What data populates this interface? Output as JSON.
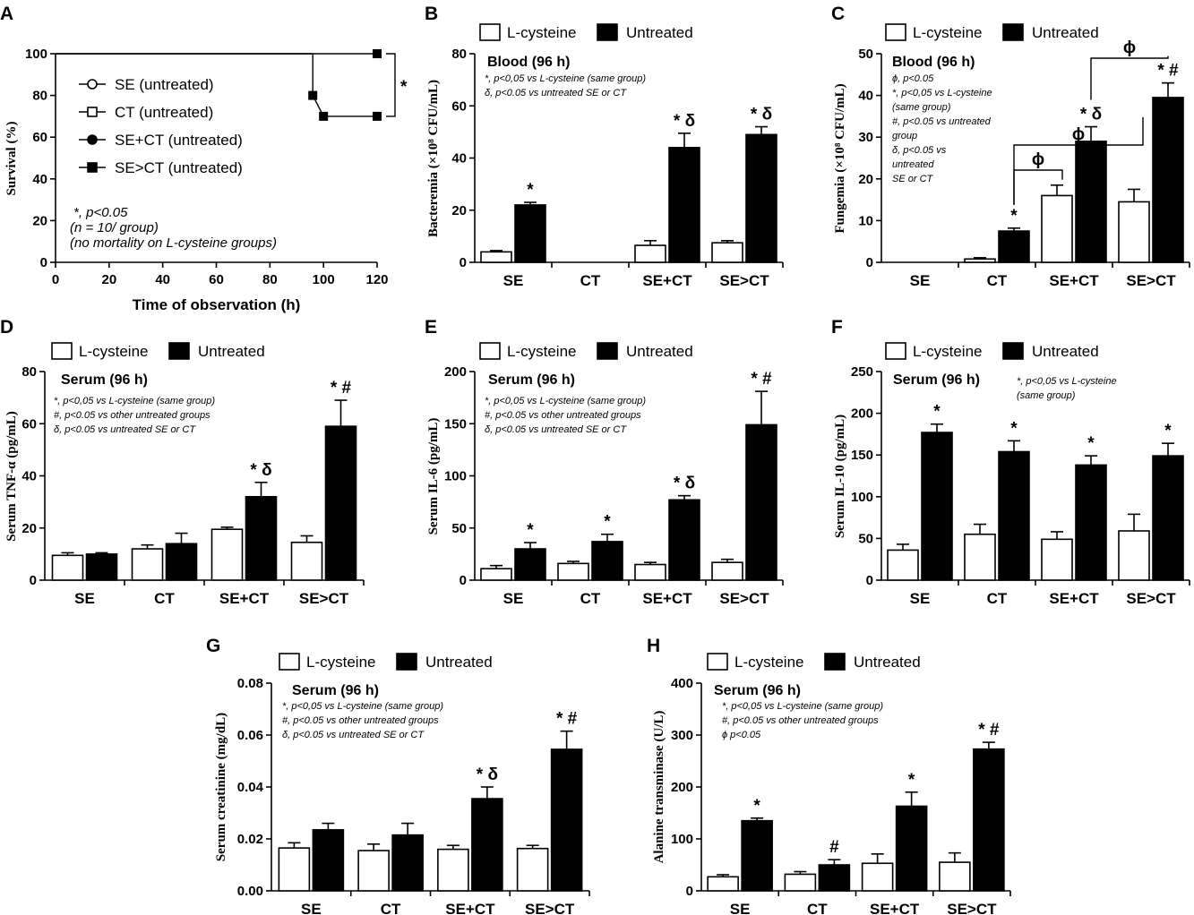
{
  "legend": {
    "lcys": "L-cysteine",
    "untreated": "Untreated"
  },
  "chart_data": [
    {
      "id": "A",
      "panel_label": "A",
      "type": "line",
      "xlabel": "Time of observation (h)",
      "ylabel": "Survival (%)",
      "xlim": [
        0,
        120
      ],
      "ylim": [
        0,
        100
      ],
      "xticks": [
        0,
        20,
        40,
        60,
        80,
        100,
        120
      ],
      "yticks": [
        0,
        20,
        40,
        60,
        80,
        100
      ],
      "series": [
        {
          "name": "SE (untreated)",
          "marker": "circle-open",
          "x": [
            0,
            120
          ],
          "y": [
            100,
            100
          ]
        },
        {
          "name": "CT (untreated)",
          "marker": "square-open",
          "x": [
            0,
            120
          ],
          "y": [
            100,
            100
          ]
        },
        {
          "name": "SE+CT (untreated)",
          "marker": "circle-filled",
          "x": [
            0,
            120
          ],
          "y": [
            100,
            100
          ]
        },
        {
          "name": "SE>CT (untreated)",
          "marker": "square-filled",
          "x": [
            0,
            96,
            96,
            100,
            120
          ],
          "y": [
            100,
            100,
            80,
            70,
            70
          ]
        }
      ],
      "marker_points": {
        "x": [
          96,
          100,
          120,
          120
        ],
        "y": [
          80,
          70,
          70,
          100
        ]
      },
      "bracket_symbol": "*",
      "notes": [
        "*, p<0.05",
        "(n = 10/ group)",
        "(no mortality on L-cysteine groups)"
      ]
    },
    {
      "id": "B",
      "panel_label": "B",
      "type": "bar",
      "title": "Blood (96 h)",
      "ylabel": "Bacteremia (×10⁸ CFU/mL)",
      "ylim": [
        0,
        80
      ],
      "yticks": [
        0,
        20,
        40,
        60,
        80
      ],
      "categories": [
        "SE",
        "CT",
        "SE+CT",
        "SE>CT"
      ],
      "series": [
        {
          "name": "L-cysteine",
          "values": [
            4,
            0,
            6.5,
            7.5
          ],
          "errors": [
            0.5,
            0,
            1.8,
            0.8
          ]
        },
        {
          "name": "Untreated",
          "values": [
            22,
            0,
            44,
            49
          ],
          "errors": [
            1,
            0,
            5.5,
            3
          ]
        }
      ],
      "annotations": [
        "*",
        "",
        "* δ",
        "* δ"
      ],
      "notes": [
        "*, p<0,05  vs L-cysteine (same group)",
        "δ, p<0.05 vs untreated SE or CT"
      ]
    },
    {
      "id": "C",
      "panel_label": "C",
      "type": "bar",
      "title": "Blood (96 h)",
      "ylabel": "Fungemia (×10⁸ CFU/mL)",
      "ylim": [
        0,
        50
      ],
      "yticks": [
        0,
        10,
        20,
        30,
        40,
        50
      ],
      "categories": [
        "SE",
        "CT",
        "SE+CT",
        "SE>CT"
      ],
      "series": [
        {
          "name": "L-cysteine",
          "values": [
            0,
            0.8,
            16,
            14.5
          ],
          "errors": [
            0,
            0.3,
            2.5,
            3
          ]
        },
        {
          "name": "Untreated",
          "values": [
            0,
            7.5,
            29,
            39.5
          ],
          "errors": [
            0,
            0.7,
            3.5,
            3.5
          ]
        }
      ],
      "annotations": [
        "",
        "*",
        "* δ",
        "* #"
      ],
      "bracket_symbol": "ϕ",
      "notes": [
        "ϕ, p<0.05",
        "*, p<0,05  vs L-cysteine",
        "(same group)",
        "#, p<0.05 vs untreated",
        "group",
        "δ, p<0.05 vs",
        "untreated",
        "SE or CT"
      ]
    },
    {
      "id": "D",
      "panel_label": "D",
      "type": "bar",
      "title": "Serum (96 h)",
      "ylabel": "Serum TNF-α (pg/mL)",
      "ylim": [
        0,
        80
      ],
      "yticks": [
        0,
        20,
        40,
        60,
        80
      ],
      "categories": [
        "SE",
        "CT",
        "SE+CT",
        "SE>CT"
      ],
      "series": [
        {
          "name": "L-cysteine",
          "values": [
            9.5,
            12,
            19.5,
            14.5
          ],
          "errors": [
            1,
            1.5,
            0.8,
            2.5
          ]
        },
        {
          "name": "Untreated",
          "values": [
            10,
            14,
            32,
            59
          ],
          "errors": [
            0.5,
            4,
            5.5,
            10
          ]
        }
      ],
      "annotations": [
        "",
        "",
        "* δ",
        "* #"
      ],
      "notes": [
        "*, p<0,05  vs L-cysteine (same group)",
        "#, p<0.05 vs other untreated groups",
        "δ, p<0.05 vs untreated SE or CT"
      ]
    },
    {
      "id": "E",
      "panel_label": "E",
      "type": "bar",
      "title": "Serum (96 h)",
      "ylabel": "Serum IL-6 (pg/mL)",
      "ylim": [
        0,
        200
      ],
      "yticks": [
        0,
        50,
        100,
        150,
        200
      ],
      "categories": [
        "SE",
        "CT",
        "SE+CT",
        "SE>CT"
      ],
      "series": [
        {
          "name": "L-cysteine",
          "values": [
            11,
            16,
            15,
            17
          ],
          "errors": [
            3,
            2,
            2,
            3
          ]
        },
        {
          "name": "Untreated",
          "values": [
            30,
            37,
            77,
            149
          ],
          "errors": [
            6,
            7,
            4,
            32
          ]
        }
      ],
      "annotations": [
        "*",
        "*",
        "* δ",
        "* #"
      ],
      "notes": [
        "*, p<0,05  vs L-cysteine (same group)",
        "#, p<0.05 vs other untreated groups",
        "δ, p<0.05 vs untreated SE or CT"
      ]
    },
    {
      "id": "F",
      "panel_label": "F",
      "type": "bar",
      "title": "Serum (96 h)",
      "ylabel": "Serum IL-10 (pg/mL)",
      "ylim": [
        0,
        250
      ],
      "yticks": [
        0,
        50,
        100,
        150,
        200,
        250
      ],
      "categories": [
        "SE",
        "CT",
        "SE+CT",
        "SE>CT"
      ],
      "series": [
        {
          "name": "L-cysteine",
          "values": [
            36,
            55,
            49,
            59
          ],
          "errors": [
            7,
            12,
            9,
            20
          ]
        },
        {
          "name": "Untreated",
          "values": [
            177,
            154,
            138,
            149
          ],
          "errors": [
            10,
            13,
            11,
            15
          ]
        }
      ],
      "annotations": [
        "*",
        "*",
        "*",
        "*"
      ],
      "notes": [
        "*, p<0,05  vs L-cysteine",
        "(same group)"
      ]
    },
    {
      "id": "G",
      "panel_label": "G",
      "type": "bar",
      "title": "Serum (96 h)",
      "ylabel": "Serum creatinine (mg/dL)",
      "ylim": [
        0,
        0.08
      ],
      "yticks": [
        0,
        0.02,
        0.04,
        0.06,
        0.08
      ],
      "ytick_labels": [
        "0.00",
        "0.02",
        "0.04",
        "0.06",
        "0.08"
      ],
      "categories": [
        "SE",
        "CT",
        "SE+CT",
        "SE>CT"
      ],
      "series": [
        {
          "name": "L-cysteine",
          "values": [
            0.0165,
            0.0155,
            0.016,
            0.0163
          ],
          "errors": [
            0.002,
            0.0025,
            0.0015,
            0.0012
          ]
        },
        {
          "name": "Untreated",
          "values": [
            0.0235,
            0.0215,
            0.0355,
            0.0545
          ],
          "errors": [
            0.0025,
            0.0045,
            0.0045,
            0.007
          ]
        }
      ],
      "annotations": [
        "",
        "",
        "* δ",
        "* #"
      ],
      "notes": [
        "*, p<0,05  vs L-cysteine (same group)",
        "#, p<0.05 vs other untreated groups",
        "δ, p<0.05 vs untreated SE or CT"
      ]
    },
    {
      "id": "H",
      "panel_label": "H",
      "type": "bar",
      "title": "Serum (96 h)",
      "ylabel": "Alanine transminase (U/L)",
      "ylim": [
        0,
        400
      ],
      "yticks": [
        0,
        100,
        200,
        300,
        400
      ],
      "categories": [
        "SE",
        "CT",
        "SE+CT",
        "SE>CT"
      ],
      "series": [
        {
          "name": "L-cysteine",
          "values": [
            27,
            32,
            53,
            55
          ],
          "errors": [
            4,
            5,
            18,
            18
          ]
        },
        {
          "name": "Untreated",
          "values": [
            135,
            50,
            163,
            273
          ],
          "errors": [
            5,
            10,
            27,
            13
          ]
        }
      ],
      "annotations": [
        "*",
        "#",
        "*",
        "* #"
      ],
      "notes": [
        "*, p<0,05  vs L-cysteine (same group)",
        "#, p<0.05 vs other untreated groups",
        "ϕ p<0.05"
      ]
    }
  ]
}
